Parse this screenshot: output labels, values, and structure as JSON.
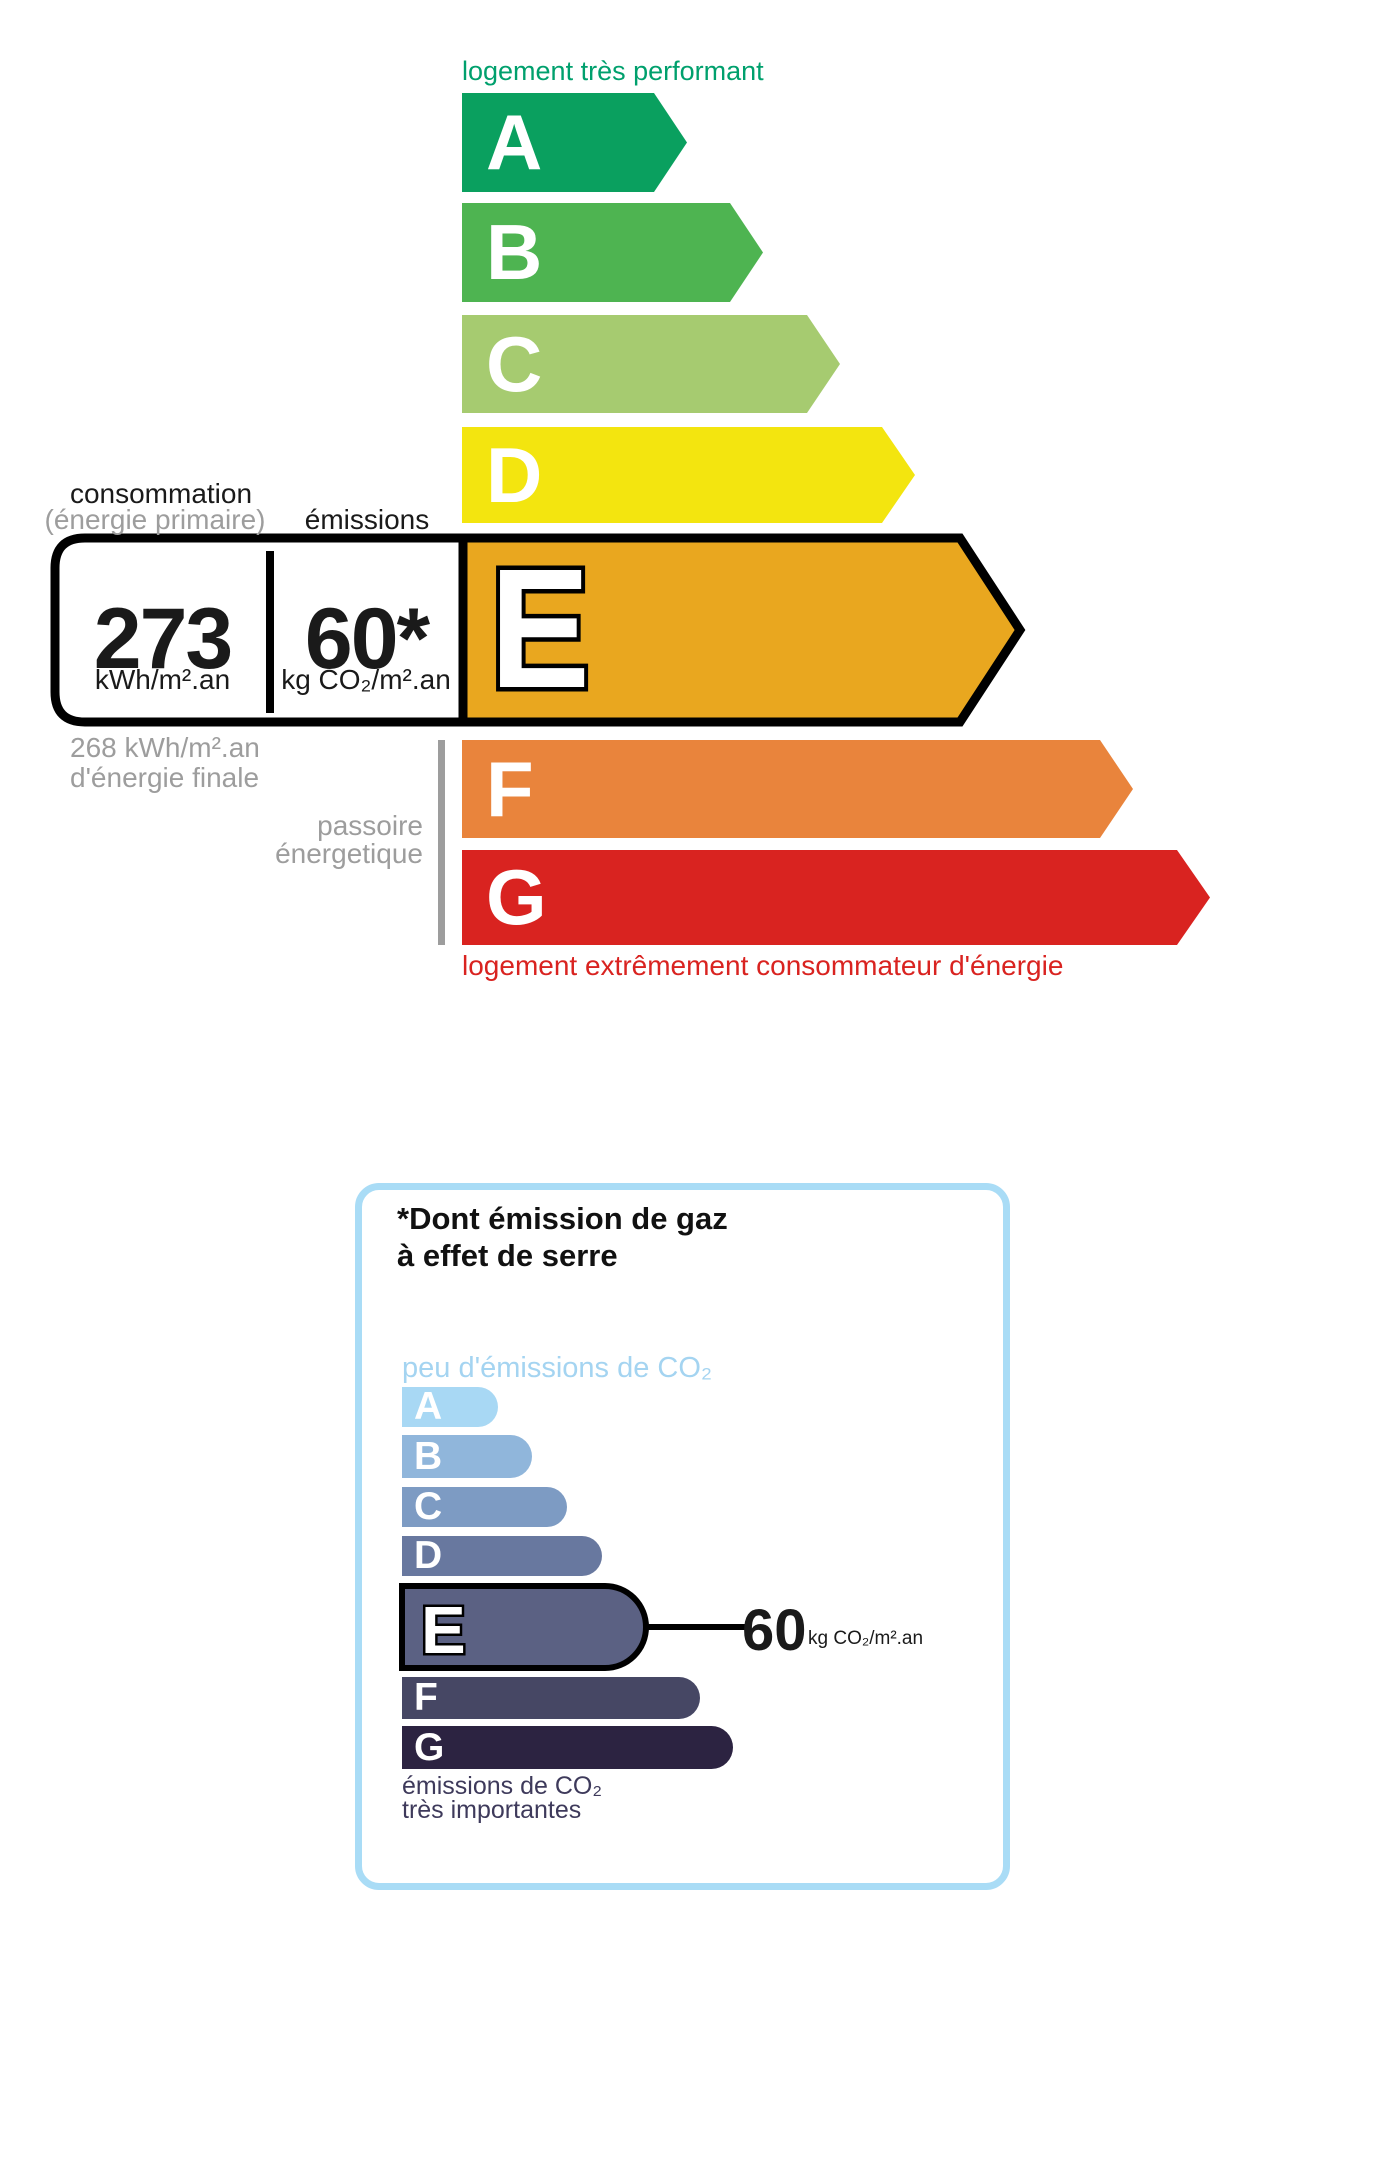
{
  "energy_scale": {
    "top_label": "logement très performant",
    "top_label_color": "#00a06d",
    "bottom_label": "logement extrêmement consommateur d'énergie",
    "bottom_label_color": "#d92320",
    "col1_header": "consommation",
    "col1_subheader": "(énergie primaire)",
    "col2_header": "émissions",
    "value_primary": "273",
    "unit_primary": "kWh/m².an",
    "value_emissions": "60*",
    "unit_emissions": "kg CO₂/m².an",
    "final_energy_line1": "268 kWh/m².an",
    "final_energy_line2": "d'énergie finale",
    "sieve_label_line1": "passoire",
    "sieve_label_line2": "énergetique",
    "current_grade": "E",
    "grades": [
      {
        "letter": "A",
        "color": "#0aa05f"
      },
      {
        "letter": "B",
        "color": "#4eb451"
      },
      {
        "letter": "C",
        "color": "#a6cb70"
      },
      {
        "letter": "D",
        "color": "#f3e50f"
      },
      {
        "letter": "E",
        "color": "#e9a71f"
      },
      {
        "letter": "F",
        "color": "#e9843c"
      },
      {
        "letter": "G",
        "color": "#d92320"
      }
    ]
  },
  "co2_scale": {
    "title_line1": "*Dont émission de gaz",
    "title_line2": "à effet de serre",
    "top_label": "peu d'émissions de CO₂",
    "bottom_label_line1": "émissions de CO₂",
    "bottom_label_line2": "très importantes",
    "value": "60",
    "unit": "kg CO₂/m².an",
    "current_grade": "E",
    "grades": [
      {
        "letter": "A",
        "color": "#a8d8f4"
      },
      {
        "letter": "B",
        "color": "#90b6db"
      },
      {
        "letter": "C",
        "color": "#7d9bc3"
      },
      {
        "letter": "D",
        "color": "#68789f"
      },
      {
        "letter": "E",
        "color": "#5b6183"
      },
      {
        "letter": "F",
        "color": "#464764"
      },
      {
        "letter": "G",
        "color": "#2c2341"
      }
    ],
    "accents": {
      "panel_border": "#a9dcf6",
      "light_blue_text": "#a4d4f1",
      "dark_text": "#3e3a5b"
    }
  }
}
